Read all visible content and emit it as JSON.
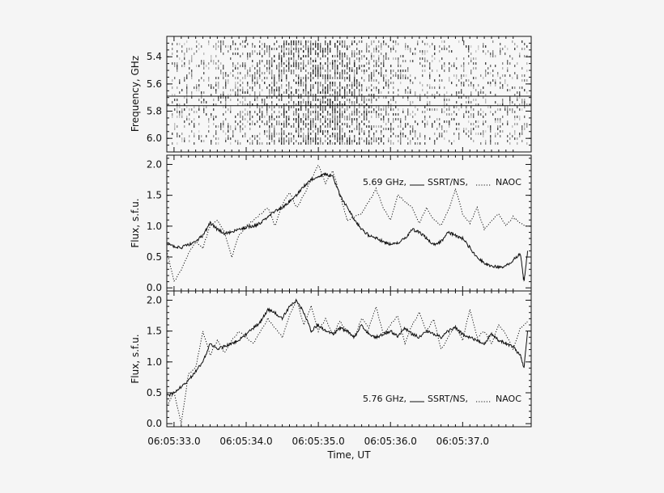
{
  "chart_data": [
    {
      "type": "heatmap",
      "ylabel": "Frequency, GHz",
      "yticks": [
        "5.4",
        "5.6",
        "5.8",
        "6.0"
      ],
      "ylim": [
        6.1,
        5.25
      ],
      "xlim": [
        32.9,
        37.95
      ],
      "marker_lines_ghz": [
        5.69,
        5.76
      ],
      "color_scale": "grayscale"
    },
    {
      "type": "line",
      "ylabel": "Flux, s.f.u.",
      "yticks": [
        "0.0",
        "0.5",
        "1.0",
        "1.5",
        "2.0"
      ],
      "ylim": [
        -0.05,
        2.15
      ],
      "xlim": [
        32.9,
        37.95
      ],
      "legend": {
        "frequency": "5.69 GHz,",
        "solid": "SSRT/NS,",
        "dotted": "NAOC",
        "placement": "top-right"
      },
      "series": [
        {
          "name": "SSRT/NS",
          "style": "solid",
          "x": [
            32.9,
            33.0,
            33.1,
            33.2,
            33.3,
            33.4,
            33.5,
            33.6,
            33.7,
            33.8,
            33.9,
            34.0,
            34.1,
            34.2,
            34.3,
            34.4,
            34.5,
            34.6,
            34.7,
            34.8,
            34.9,
            35.0,
            35.1,
            35.2,
            35.3,
            35.4,
            35.5,
            35.6,
            35.7,
            35.8,
            35.9,
            36.0,
            36.1,
            36.2,
            36.3,
            36.4,
            36.5,
            36.6,
            36.7,
            36.8,
            36.9,
            37.0,
            37.1,
            37.2,
            37.3,
            37.4,
            37.5,
            37.6,
            37.7,
            37.8,
            37.85,
            37.9
          ],
          "y": [
            0.72,
            0.68,
            0.65,
            0.7,
            0.75,
            0.85,
            1.05,
            0.95,
            0.88,
            0.9,
            0.95,
            0.98,
            1.0,
            1.05,
            1.15,
            1.25,
            1.3,
            1.4,
            1.5,
            1.65,
            1.75,
            1.8,
            1.85,
            1.8,
            1.5,
            1.3,
            1.1,
            0.95,
            0.85,
            0.8,
            0.75,
            0.7,
            0.72,
            0.8,
            0.95,
            0.9,
            0.8,
            0.7,
            0.75,
            0.9,
            0.85,
            0.8,
            0.65,
            0.5,
            0.4,
            0.35,
            0.33,
            0.35,
            0.45,
            0.55,
            0.1,
            0.6
          ]
        },
        {
          "name": "NAOC",
          "style": "dotted",
          "x": [
            32.9,
            33.0,
            33.1,
            33.2,
            33.3,
            33.4,
            33.5,
            33.6,
            33.7,
            33.8,
            33.9,
            34.0,
            34.1,
            34.2,
            34.3,
            34.4,
            34.5,
            34.6,
            34.7,
            34.8,
            34.9,
            35.0,
            35.1,
            35.2,
            35.3,
            35.4,
            35.5,
            35.6,
            35.7,
            35.8,
            35.9,
            36.0,
            36.1,
            36.2,
            36.3,
            36.4,
            36.5,
            36.6,
            36.7,
            36.8,
            36.9,
            37.0,
            37.1,
            37.2,
            37.3,
            37.4,
            37.5,
            37.6,
            37.7,
            37.8,
            37.9
          ],
          "y": [
            0.6,
            0.1,
            0.3,
            0.55,
            0.75,
            0.65,
            1.0,
            1.1,
            0.9,
            0.5,
            0.85,
            1.0,
            1.1,
            1.2,
            1.3,
            1.0,
            1.35,
            1.55,
            1.3,
            1.5,
            1.75,
            2.0,
            1.7,
            1.9,
            1.5,
            1.1,
            1.15,
            1.2,
            1.4,
            1.6,
            1.3,
            1.1,
            1.5,
            1.4,
            1.3,
            1.05,
            1.3,
            1.1,
            1.0,
            1.25,
            1.6,
            1.2,
            1.05,
            1.3,
            0.95,
            1.1,
            1.2,
            1.0,
            1.15,
            1.05,
            1.0
          ]
        }
      ]
    },
    {
      "type": "line",
      "ylabel": "Flux, s.f.u.",
      "yticks": [
        "0.0",
        "0.5",
        "1.0",
        "1.5",
        "2.0"
      ],
      "ylim": [
        -0.05,
        2.15
      ],
      "xlim": [
        32.9,
        37.95
      ],
      "xlabel": "Time, UT",
      "xticks": [
        "06:05:33.0",
        "06:05:34.0",
        "06:05:35.0",
        "06:05:36.0",
        "06:05:37.0"
      ],
      "legend": {
        "frequency": "5.76 GHz,",
        "solid": "SSRT/NS,",
        "dotted": "NAOC",
        "placement": "bottom-right"
      },
      "series": [
        {
          "name": "SSRT/NS",
          "style": "solid",
          "x": [
            32.9,
            33.0,
            33.1,
            33.2,
            33.3,
            33.4,
            33.5,
            33.6,
            33.7,
            33.8,
            33.9,
            34.0,
            34.1,
            34.2,
            34.3,
            34.4,
            34.5,
            34.6,
            34.7,
            34.8,
            34.9,
            35.0,
            35.1,
            35.2,
            35.3,
            35.4,
            35.5,
            35.6,
            35.7,
            35.8,
            35.9,
            36.0,
            36.1,
            36.2,
            36.3,
            36.4,
            36.5,
            36.6,
            36.7,
            36.8,
            36.9,
            37.0,
            37.1,
            37.2,
            37.3,
            37.4,
            37.5,
            37.6,
            37.7,
            37.8,
            37.85,
            37.9
          ],
          "y": [
            0.45,
            0.5,
            0.6,
            0.7,
            0.85,
            1.0,
            1.3,
            1.2,
            1.25,
            1.3,
            1.35,
            1.45,
            1.55,
            1.65,
            1.85,
            1.8,
            1.7,
            1.9,
            2.0,
            1.8,
            1.5,
            1.6,
            1.5,
            1.45,
            1.55,
            1.5,
            1.4,
            1.6,
            1.45,
            1.4,
            1.45,
            1.5,
            1.42,
            1.55,
            1.45,
            1.4,
            1.5,
            1.45,
            1.4,
            1.5,
            1.55,
            1.45,
            1.4,
            1.35,
            1.3,
            1.45,
            1.35,
            1.3,
            1.25,
            1.1,
            0.9,
            1.5
          ]
        },
        {
          "name": "NAOC",
          "style": "dotted",
          "x": [
            32.9,
            33.0,
            33.1,
            33.2,
            33.3,
            33.4,
            33.5,
            33.6,
            33.7,
            33.8,
            33.9,
            34.0,
            34.1,
            34.2,
            34.3,
            34.4,
            34.5,
            34.6,
            34.7,
            34.8,
            34.9,
            35.0,
            35.1,
            35.2,
            35.3,
            35.4,
            35.5,
            35.6,
            35.7,
            35.8,
            35.9,
            36.0,
            36.1,
            36.2,
            36.3,
            36.4,
            36.5,
            36.6,
            36.7,
            36.8,
            36.9,
            37.0,
            37.1,
            37.2,
            37.3,
            37.4,
            37.5,
            37.6,
            37.7,
            37.8,
            37.9
          ],
          "y": [
            0.3,
            0.5,
            0.0,
            0.8,
            0.9,
            1.5,
            1.1,
            1.35,
            1.15,
            1.35,
            1.5,
            1.4,
            1.3,
            1.5,
            1.7,
            1.55,
            1.4,
            1.75,
            2.0,
            1.6,
            1.9,
            1.5,
            1.7,
            1.45,
            1.65,
            1.5,
            1.4,
            1.7,
            1.55,
            1.9,
            1.45,
            1.6,
            1.75,
            1.3,
            1.6,
            1.8,
            1.5,
            1.7,
            1.2,
            1.4,
            1.6,
            1.35,
            1.85,
            1.4,
            1.5,
            1.3,
            1.6,
            1.45,
            1.2,
            1.55,
            1.65
          ]
        }
      ]
    }
  ]
}
